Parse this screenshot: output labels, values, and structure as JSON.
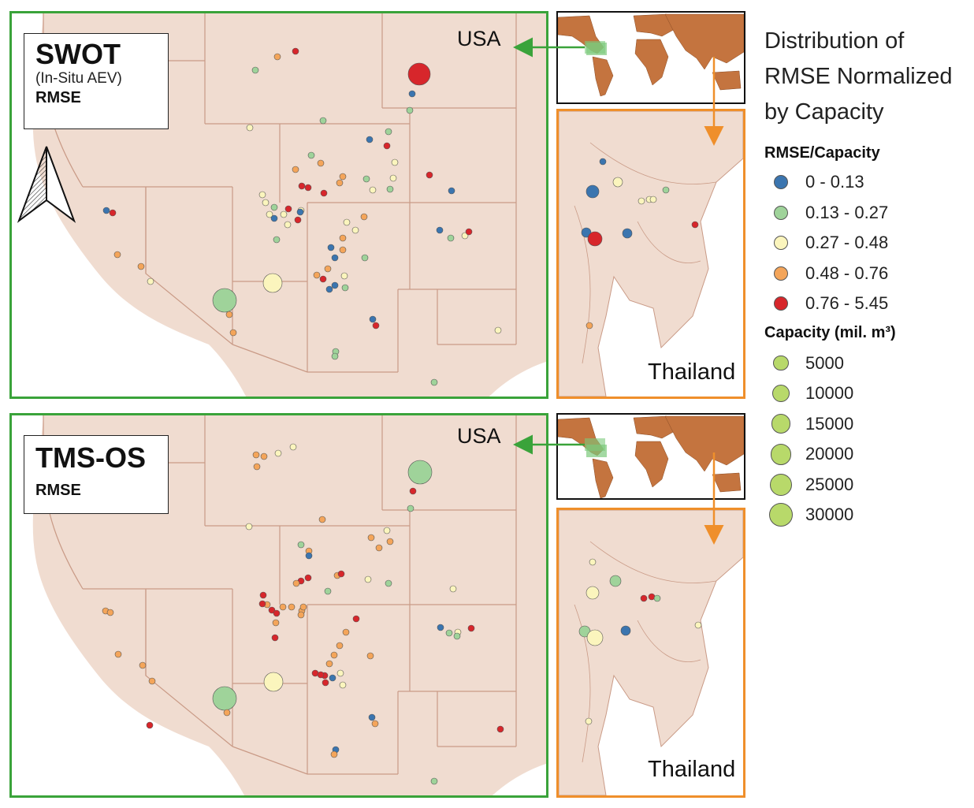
{
  "legend": {
    "title": "Distribution of RMSE Normalized by Capacity",
    "rmse_header": "RMSE/Capacity",
    "rmse_classes": [
      {
        "label": "0 - 0.13",
        "color": "#3b75af"
      },
      {
        "label": "0.13 - 0.27",
        "color": "#9fd39a"
      },
      {
        "label": "0.27 - 0.48",
        "color": "#fbf5bd"
      },
      {
        "label": "0.48 - 0.76",
        "color": "#f4a55a"
      },
      {
        "label": "0.76 - 5.45",
        "color": "#d7262b"
      }
    ],
    "capacity_header": "Capacity (mil.  m³)",
    "capacity_classes": [
      {
        "label": "5000",
        "value": 5000
      },
      {
        "label": "10000",
        "value": 10000
      },
      {
        "label": "15000",
        "value": 15000
      },
      {
        "label": "20000",
        "value": 20000
      },
      {
        "label": "25000",
        "value": 25000
      },
      {
        "label": "30000",
        "value": 30000
      }
    ],
    "capacity_color": "#b8d96a"
  },
  "panels": [
    {
      "title": "SWOT",
      "subtitle": "(In-Situ AEV)",
      "metric": "RMSE",
      "usa_label": "USA",
      "thailand_label": "Thailand"
    },
    {
      "title": "TMS-OS",
      "subtitle": "",
      "metric": "RMSE",
      "usa_label": "USA",
      "thailand_label": "Thailand"
    }
  ]
}
